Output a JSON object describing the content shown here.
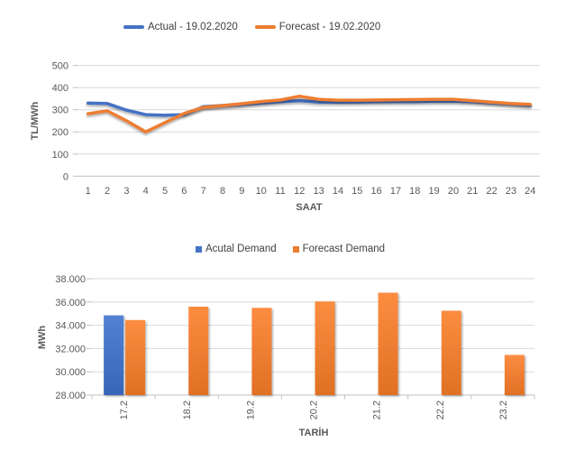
{
  "page": {
    "background": "#FFFFFF"
  },
  "colors": {
    "series_blue": "#4472C4",
    "series_orange": "#ED7D31",
    "gridline": "#D9D9D9",
    "axis_line": "#BFBFBF",
    "tick_text": "#595959",
    "legend_text": "#404040"
  },
  "chart_data": [
    {
      "type": "line",
      "title": "",
      "legend": [
        "Actual - 19.02.2020",
        "Forecast - 19.02.2020"
      ],
      "legend_position": "top",
      "xlabel": "SAAT",
      "ylabel": "TL/MWh",
      "grid": true,
      "ylim": [
        0,
        500
      ],
      "yticks": [
        0,
        100,
        200,
        300,
        400,
        500
      ],
      "ytick_labels": [
        "0",
        "100",
        "200",
        "300",
        "400",
        "500"
      ],
      "x": [
        "1",
        "2",
        "3",
        "4",
        "5",
        "6",
        "7",
        "8",
        "9",
        "10",
        "11",
        "12",
        "13",
        "14",
        "15",
        "16",
        "17",
        "18",
        "19",
        "20",
        "21",
        "22",
        "23",
        "24"
      ],
      "series": [
        {
          "name": "Actual - 19.02.2020",
          "color": "#4472C4",
          "values": [
            330,
            328,
            298,
            278,
            275,
            278,
            314,
            319,
            324,
            330,
            336,
            341,
            335,
            334,
            335,
            336,
            337,
            337,
            338,
            339,
            336,
            331,
            326,
            320
          ]
        },
        {
          "name": "Forecast - 19.02.2020",
          "color": "#ED7D31",
          "values": [
            282,
            295,
            250,
            200,
            242,
            283,
            311,
            319,
            327,
            337,
            344,
            361,
            347,
            343,
            343,
            344,
            345,
            346,
            347,
            347,
            341,
            334,
            328,
            324
          ]
        }
      ]
    },
    {
      "type": "bar",
      "title": "",
      "legend": [
        "Acutal Demand",
        "Forecast Demand"
      ],
      "legend_position": "top",
      "xlabel": "TARİH",
      "ylabel": "MWh",
      "grid": true,
      "ylim": [
        28000,
        38000
      ],
      "yticks": [
        28000,
        30000,
        32000,
        34000,
        36000,
        38000
      ],
      "ytick_labels": [
        "28.000",
        "30.000",
        "32.000",
        "34.000",
        "36.000",
        "38.000"
      ],
      "categories": [
        "17.2",
        "18.2",
        "19.2",
        "20.2",
        "21.2",
        "22.2",
        "23.2"
      ],
      "series": [
        {
          "name": "Acutal Demand",
          "color": "#4472C4",
          "values": [
            34850,
            null,
            null,
            null,
            null,
            null,
            null
          ]
        },
        {
          "name": "Forecast Demand",
          "color": "#ED7D31",
          "values": [
            34450,
            35600,
            35500,
            36050,
            36800,
            35250,
            31450
          ]
        }
      ]
    }
  ]
}
